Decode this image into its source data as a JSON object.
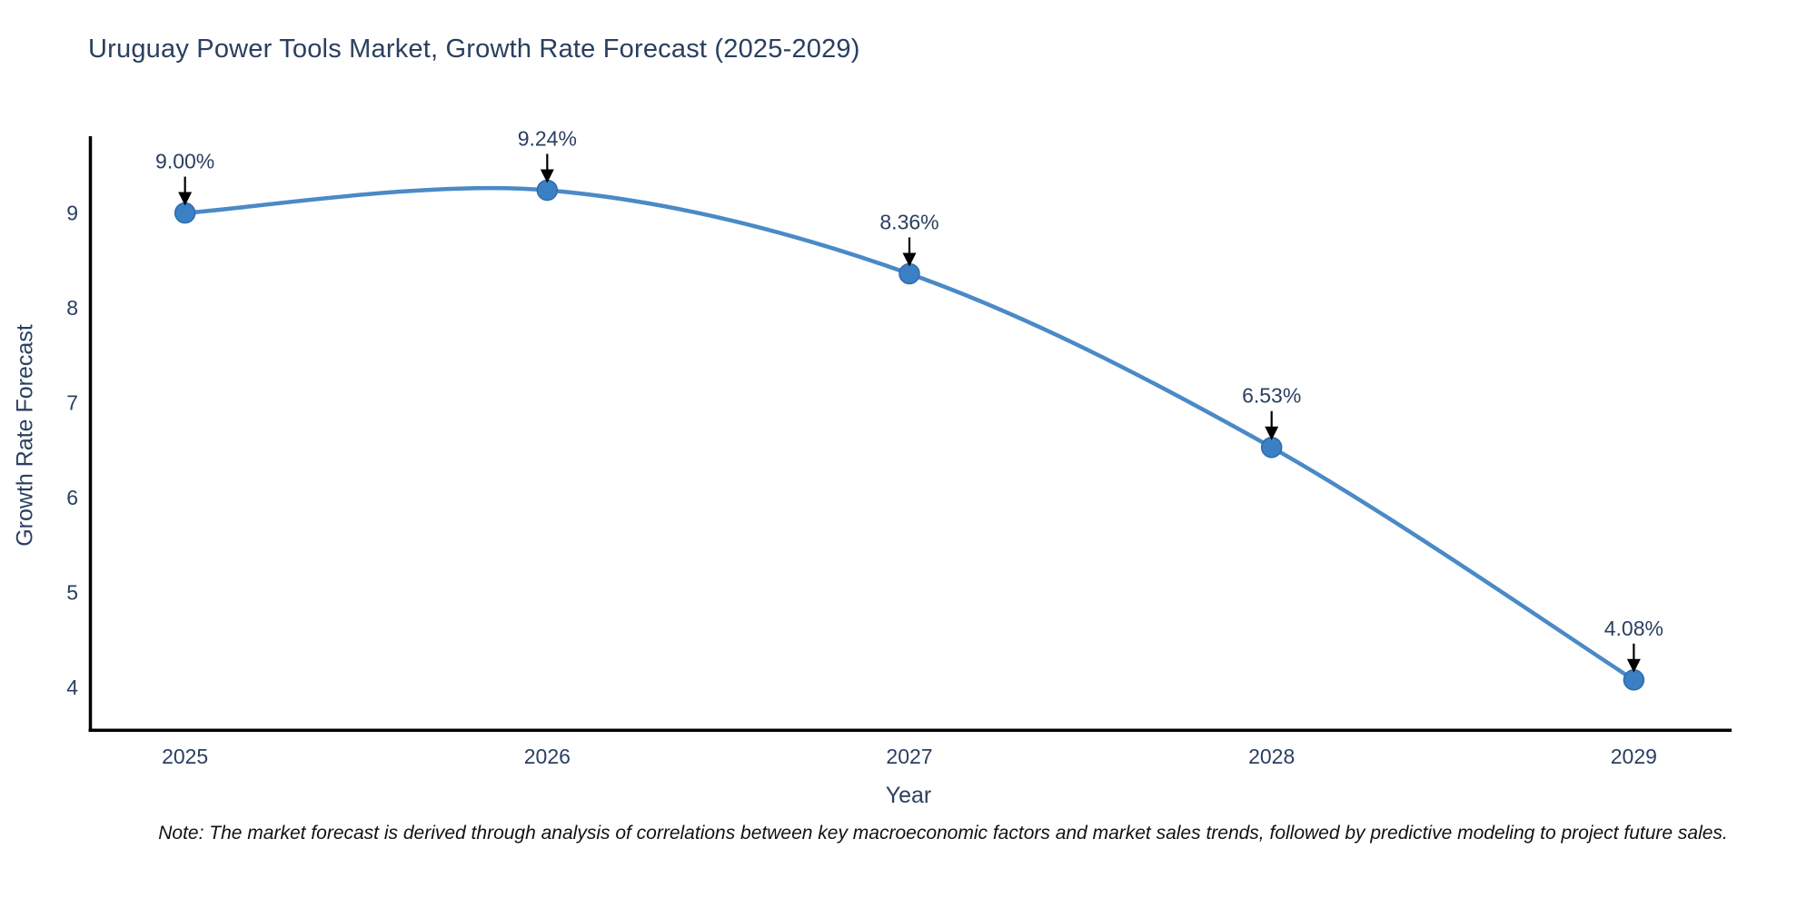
{
  "note": {
    "text": "Note: The market forecast is derived through analysis of correlations between key macroeconomic factors and market sales trends, followed by predictive modeling to project future sales."
  },
  "chart_data": {
    "type": "line",
    "title": "Uruguay Power Tools Market, Growth Rate Forecast (2025-2029)",
    "xlabel": "Year",
    "ylabel": "Growth Rate Forecast",
    "x": [
      2025,
      2026,
      2027,
      2028,
      2029
    ],
    "series": [
      {
        "name": "Growth Rate Forecast",
        "values": [
          9.0,
          9.24,
          8.36,
          6.53,
          4.08
        ]
      }
    ],
    "point_labels": [
      "9.00%",
      "9.24%",
      "8.36%",
      "6.53%",
      "4.08%"
    ],
    "xticks": [
      "2025",
      "2026",
      "2027",
      "2028",
      "2029"
    ],
    "yticks": [
      4,
      5,
      6,
      7,
      8,
      9
    ],
    "xlim": [
      2024.735,
      2029.27
    ],
    "ylim": [
      3.552,
      9.809
    ],
    "grid": false,
    "legend_position": "none",
    "line_shape": "spline",
    "colors": {
      "line": "#4a8ac6",
      "marker": "#3b80c2",
      "marker_edge": "#2f6cab",
      "axis": "#000000",
      "tick_label": "#2a3f5f",
      "annotation_text": "#2a3f5f",
      "annotation_arrow": "#000000"
    }
  }
}
